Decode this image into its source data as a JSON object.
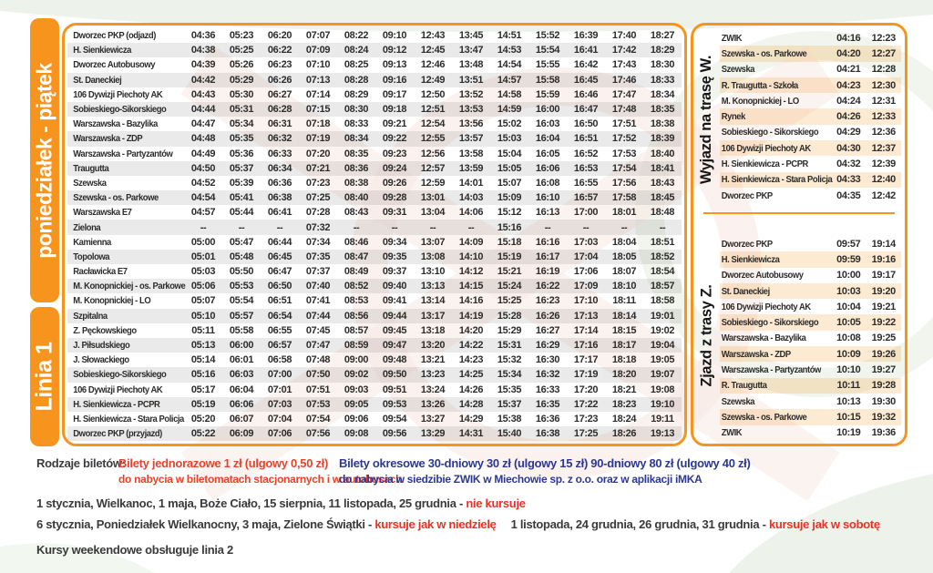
{
  "page": {
    "line_label": "Linia 1",
    "days_label": "poniedziałek - piątek"
  },
  "colors": {
    "orange": "#F7941E",
    "stripe_gray": "#E7E8E9",
    "stripe_cream": "#FBEACB",
    "text_dark": "#2E2D2C",
    "holiday_red": "#ED3024",
    "ticket_red": "#E8432A",
    "navy": "#2B3990"
  },
  "main_table": {
    "rows": [
      {
        "stop": "Dworzec PKP (odjazd)",
        "times": [
          "04:36",
          "05:23",
          "06:20",
          "07:07",
          "08:22",
          "09:10",
          "12:43",
          "13:45",
          "14:51",
          "15:52",
          "16:39",
          "17:40",
          "18:27"
        ]
      },
      {
        "stop": "H. Sienkiewicza",
        "times": [
          "04:38",
          "05:25",
          "06:22",
          "07:09",
          "08:24",
          "09:12",
          "12:45",
          "13:47",
          "14:53",
          "15:54",
          "16:41",
          "17:42",
          "18:29"
        ]
      },
      {
        "stop": "Dworzec Autobusowy",
        "times": [
          "04:39",
          "05:26",
          "06:23",
          "07:10",
          "08:25",
          "09:13",
          "12:46",
          "13:48",
          "14:54",
          "15:55",
          "16:42",
          "17:43",
          "18:30"
        ]
      },
      {
        "stop": "St. Daneckiej",
        "times": [
          "04:42",
          "05:29",
          "06:26",
          "07:13",
          "08:28",
          "09:16",
          "12:49",
          "13:51",
          "14:57",
          "15:58",
          "16:45",
          "17:46",
          "18:33"
        ]
      },
      {
        "stop": "106 Dywizji Piechoty AK",
        "times": [
          "04:43",
          "05:30",
          "06:27",
          "07:14",
          "08:29",
          "09:17",
          "12:50",
          "13:52",
          "14:58",
          "15:59",
          "16:46",
          "17:47",
          "18:34"
        ]
      },
      {
        "stop": "Sobieskiego-Sikorskiego",
        "times": [
          "04:44",
          "05:31",
          "06:28",
          "07:15",
          "08:30",
          "09:18",
          "12:51",
          "13:53",
          "14:59",
          "16:00",
          "16:47",
          "17:48",
          "18:35"
        ]
      },
      {
        "stop": "Warszawska - Bazylika",
        "times": [
          "04:47",
          "05:34",
          "06:31",
          "07:18",
          "08:33",
          "09:21",
          "12:54",
          "13:56",
          "15:02",
          "16:03",
          "16:50",
          "17:51",
          "18:38"
        ]
      },
      {
        "stop": "Warszawska - ZDP",
        "times": [
          "04:48",
          "05:35",
          "06:32",
          "07:19",
          "08:34",
          "09:22",
          "12:55",
          "13:57",
          "15:03",
          "16:04",
          "16:51",
          "17:52",
          "18:39"
        ]
      },
      {
        "stop": "Warszawska - Partyzantów",
        "times": [
          "04:49",
          "05:36",
          "06:33",
          "07:20",
          "08:35",
          "09:23",
          "12:56",
          "13:58",
          "15:04",
          "16:05",
          "16:52",
          "17:53",
          "18:40"
        ]
      },
      {
        "stop": "Traugutta",
        "times": [
          "04:50",
          "05:37",
          "06:34",
          "07:21",
          "08:36",
          "09:24",
          "12:57",
          "13:59",
          "15:05",
          "16:06",
          "16:53",
          "17:54",
          "18:41"
        ]
      },
      {
        "stop": "Szewska",
        "times": [
          "04:52",
          "05:39",
          "06:36",
          "07:23",
          "08:38",
          "09:26",
          "12:59",
          "14:01",
          "15:07",
          "16:08",
          "16:55",
          "17:56",
          "18:43"
        ]
      },
      {
        "stop": "Szewska - os. Parkowe",
        "times": [
          "04:54",
          "05:41",
          "06:38",
          "07:25",
          "08:40",
          "09:28",
          "13:01",
          "14:03",
          "15:09",
          "16:10",
          "16:57",
          "17:58",
          "18:45"
        ]
      },
      {
        "stop": "Warszawska E7",
        "times": [
          "04:57",
          "05:44",
          "06:41",
          "07:28",
          "08:43",
          "09:31",
          "13:04",
          "14:06",
          "15:12",
          "16:13",
          "17:00",
          "18:01",
          "18:48"
        ]
      },
      {
        "stop": "Zielona",
        "times": [
          "--",
          "--",
          "--",
          "07:32",
          "--",
          "--",
          "--",
          "--",
          "15:16",
          "--",
          "--",
          "--",
          "--"
        ]
      },
      {
        "stop": "Kamienna",
        "times": [
          "05:00",
          "05:47",
          "06:44",
          "07:34",
          "08:46",
          "09:34",
          "13:07",
          "14:09",
          "15:18",
          "16:16",
          "17:03",
          "18:04",
          "18:51"
        ]
      },
      {
        "stop": "Topolowa",
        "times": [
          "05:01",
          "05:48",
          "06:45",
          "07:35",
          "08:47",
          "09:35",
          "13:08",
          "14:10",
          "15:19",
          "16:17",
          "17:04",
          "18:05",
          "18:52"
        ]
      },
      {
        "stop": "Racławicka E7",
        "times": [
          "05:03",
          "05:50",
          "06:47",
          "07:37",
          "08:49",
          "09:37",
          "13:10",
          "14:12",
          "15:21",
          "16:19",
          "17:06",
          "18:07",
          "18:54"
        ]
      },
      {
        "stop": "M. Konopnickiej - os. Parkowe",
        "times": [
          "05:06",
          "05:53",
          "06:50",
          "07:40",
          "08:52",
          "09:40",
          "13:13",
          "14:15",
          "15:24",
          "16:22",
          "17:09",
          "18:10",
          "18:57"
        ]
      },
      {
        "stop": "M. Konopnickiej - LO",
        "times": [
          "05:07",
          "05:54",
          "06:51",
          "07:41",
          "08:53",
          "09:41",
          "13:14",
          "14:16",
          "15:25",
          "16:23",
          "17:10",
          "18:11",
          "18:58"
        ]
      },
      {
        "stop": "Szpitalna",
        "times": [
          "05:10",
          "05:57",
          "06:54",
          "07:44",
          "08:56",
          "09:44",
          "13:17",
          "14:19",
          "15:28",
          "16:26",
          "17:13",
          "18:14",
          "19:01"
        ]
      },
      {
        "stop": "Z. Pęckowskiego",
        "times": [
          "05:11",
          "05:58",
          "06:55",
          "07:45",
          "08:57",
          "09:45",
          "13:18",
          "14:20",
          "15:29",
          "16:27",
          "17:14",
          "18:15",
          "19:02"
        ]
      },
      {
        "stop": "J. Piłsudskiego",
        "times": [
          "05:13",
          "06:00",
          "06:57",
          "07:47",
          "08:59",
          "09:47",
          "13:20",
          "14:22",
          "15:31",
          "16:29",
          "17:16",
          "18:17",
          "19:04"
        ]
      },
      {
        "stop": "J. Słowackiego",
        "times": [
          "05:14",
          "06:01",
          "06:58",
          "07:48",
          "09:00",
          "09:48",
          "13:21",
          "14:23",
          "15:32",
          "16:30",
          "17:17",
          "18:18",
          "19:05"
        ]
      },
      {
        "stop": "Sobieskiego-Sikorskiego",
        "times": [
          "05:16",
          "06:03",
          "07:00",
          "07:50",
          "09:02",
          "09:50",
          "13:23",
          "14:25",
          "15:34",
          "16:32",
          "17:19",
          "18:20",
          "19:07"
        ]
      },
      {
        "stop": "106 Dywizji Piechoty AK",
        "times": [
          "05:17",
          "06:04",
          "07:01",
          "07:51",
          "09:03",
          "09:51",
          "13:24",
          "14:26",
          "15:35",
          "16:33",
          "17:20",
          "18:21",
          "19:08"
        ]
      },
      {
        "stop": "H. Sienkiewicza - PCPR",
        "times": [
          "05:19",
          "06:06",
          "07:03",
          "07:53",
          "09:05",
          "09:53",
          "13:26",
          "14:28",
          "15:37",
          "16:35",
          "17:22",
          "18:23",
          "19:10"
        ]
      },
      {
        "stop": "H. Sienkiewicza - Stara Policja",
        "times": [
          "05:20",
          "06:07",
          "07:04",
          "07:54",
          "09:06",
          "09:54",
          "13:27",
          "14:29",
          "15:38",
          "16:36",
          "17:23",
          "18:24",
          "19:11"
        ]
      },
      {
        "stop": "Dworzec PKP (przyjazd)",
        "times": [
          "05:22",
          "06:09",
          "07:06",
          "07:56",
          "09:08",
          "09:56",
          "13:29",
          "14:31",
          "15:40",
          "16:38",
          "17:25",
          "18:26",
          "19:13"
        ]
      }
    ]
  },
  "outbound": {
    "label": "Wyjazd na trasę W.",
    "rows": [
      {
        "stop": "ZWIK",
        "times": [
          "04:16",
          "12:23"
        ]
      },
      {
        "stop": "Szewska - os. Parkowe",
        "times": [
          "04:20",
          "12:27"
        ]
      },
      {
        "stop": "Szewska",
        "times": [
          "04:21",
          "12:28"
        ]
      },
      {
        "stop": "R. Traugutta - Szkoła",
        "times": [
          "04:23",
          "12:30"
        ]
      },
      {
        "stop": "M. Konopnickiej - LO",
        "times": [
          "04:24",
          "12:31"
        ]
      },
      {
        "stop": "Rynek",
        "times": [
          "04:26",
          "12:33"
        ]
      },
      {
        "stop": "Sobieskiego - Sikorskiego",
        "times": [
          "04:29",
          "12:36"
        ]
      },
      {
        "stop": "106 Dywizji Piechoty AK",
        "times": [
          "04:30",
          "12:37"
        ]
      },
      {
        "stop": "H. Sienkiewicza - PCPR",
        "times": [
          "04:32",
          "12:39"
        ]
      },
      {
        "stop": "H. Sienkiewicza - Stara Policja",
        "times": [
          "04:33",
          "12:40"
        ]
      },
      {
        "stop": "Dworzec PKP",
        "times": [
          "04:35",
          "12:42"
        ]
      }
    ]
  },
  "inbound": {
    "label": "Zjazd z trasy Z.",
    "rows": [
      {
        "stop": "Dworzec PKP",
        "times": [
          "09:57",
          "19:14"
        ]
      },
      {
        "stop": "H. Sienkiewicza",
        "times": [
          "09:59",
          "19:16"
        ]
      },
      {
        "stop": "Dworzec Autobusowy",
        "times": [
          "10:00",
          "19:17"
        ]
      },
      {
        "stop": "St. Daneckiej",
        "times": [
          "10:03",
          "19:20"
        ]
      },
      {
        "stop": "106 Dywizji Piechoty AK",
        "times": [
          "10:04",
          "19:21"
        ]
      },
      {
        "stop": "Sobieskiego - Sikorskiego",
        "times": [
          "10:05",
          "19:22"
        ]
      },
      {
        "stop": "Warszawska - Bazylika",
        "times": [
          "10:08",
          "19:25"
        ]
      },
      {
        "stop": "Warszawska - ZDP",
        "times": [
          "10:09",
          "19:26"
        ]
      },
      {
        "stop": "Warszawska - Partyzantów",
        "times": [
          "10:10",
          "19:27"
        ]
      },
      {
        "stop": "R. Traugutta",
        "times": [
          "10:11",
          "19:28"
        ]
      },
      {
        "stop": "Szewska",
        "times": [
          "10:13",
          "19:30"
        ]
      },
      {
        "stop": "Szewska - os. Parkowe",
        "times": [
          "10:15",
          "19:32"
        ]
      },
      {
        "stop": "ZWIK",
        "times": [
          "10:19",
          "19:36"
        ]
      }
    ]
  },
  "footer": {
    "tickets_label": "Rodzaje biletów:",
    "single_line1": "Bilety jednorazowe 1 zł (ulgowy 0,50 zł)",
    "single_line2": "do nabycia w biletomatach stacjonarnych i w autobusach",
    "period_line1": "Bilety okresowe 30-dniowy 30 zł (ulgowy 15 zł)  90-dniowy 80 zł (ulgowy 40 zł)",
    "period_line2": "do nabycia w siedzibie ZWIK w Miechowie sp. z o.o. oraz w aplikacji iMKA",
    "holidays_none": "1 stycznia, Wielkanoc, 1 maja, Boże Ciało, 15 sierpnia, 11 listopada, 25 grudnia - ",
    "holidays_none_red": "nie kursuje",
    "holidays_sunday": "6 stycznia, Poniedziałek Wielkanocny, 3 maja, Zielone Świątki - ",
    "holidays_sunday_red": "kursuje jak w niedzielę",
    "holidays_saturday": "1 listopada, 24 grudnia, 26 grudnia, 31 grudnia - ",
    "holidays_saturday_red": "kursuje jak w sobotę",
    "weekend_note": "Kursy weekendowe obsługuje linia 2"
  }
}
